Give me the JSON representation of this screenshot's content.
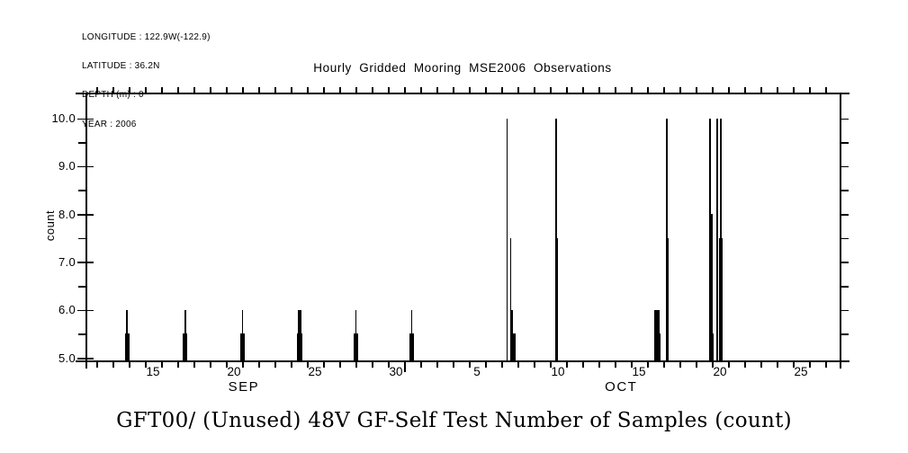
{
  "chart_data": {
    "type": "spike",
    "title": "Hourly Gridded Mooring MSE2006 Observations",
    "variable_label": "GFT00/ (Unused) 48V GF-Self Test Number of Samples (count)",
    "ylabel": "count",
    "xlabel": "",
    "grid": false,
    "legend_position": "none",
    "annotations": [
      "LONGITUDE : 122.9W(-122.9)",
      "LATITUDE : 36.2N",
      "DEPTH (m) : 0",
      "YEAR : 2006"
    ],
    "y_axis": {
      "min": 5.0,
      "max": 10.6,
      "major_tick_step": 1.0,
      "minor_tick_step": 0.5,
      "major_ticks": [
        {
          "v": 5.0,
          "label": "5.0"
        },
        {
          "v": 6.0,
          "label": "6.0"
        },
        {
          "v": 7.0,
          "label": "7.0"
        },
        {
          "v": 8.0,
          "label": "8.0"
        },
        {
          "v": 9.0,
          "label": "9.0"
        },
        {
          "v": 10.0,
          "label": "10.0"
        }
      ],
      "minor_ticks": [
        5.5,
        6.5,
        7.5,
        8.5,
        9.5
      ],
      "right_ticks": [
        5.5,
        6.0,
        6.5,
        7.0,
        7.5,
        8.0,
        8.5,
        9.0,
        9.5,
        10.0
      ]
    },
    "x_axis": {
      "units": "days since 2006-09-11 00:00",
      "start": 0.33,
      "end": 46.89,
      "day_tick_first": 1,
      "day_tick_last": 46,
      "day_tick_step": 1,
      "month_boundary_day": 20,
      "day_labels": [
        {
          "t": 4.5,
          "label": "15"
        },
        {
          "t": 9.5,
          "label": "20"
        },
        {
          "t": 14.5,
          "label": "25"
        },
        {
          "t": 19.5,
          "label": "30"
        },
        {
          "t": 24.5,
          "label": "5"
        },
        {
          "t": 29.5,
          "label": "10"
        },
        {
          "t": 34.5,
          "label": "15"
        },
        {
          "t": 39.5,
          "label": "20"
        },
        {
          "t": 44.5,
          "label": "25"
        }
      ],
      "month_labels": [
        {
          "t": 10.1,
          "label": "SEP"
        },
        {
          "t": 33.4,
          "label": "OCT"
        }
      ]
    },
    "series": [
      {
        "name": "GFT00 self-test number of samples",
        "points": [
          {
            "t": 2.82,
            "v": 5.5,
            "date": "Sep 13"
          },
          {
            "t": 2.9,
            "v": 6.0,
            "date": "Sep 13"
          },
          {
            "t": 2.99,
            "v": 5.5,
            "date": "Sep 13"
          },
          {
            "t": 6.39,
            "v": 5.5,
            "date": "Sep 17"
          },
          {
            "t": 6.48,
            "v": 6.0,
            "date": "Sep 17",
            "w": 2.2
          },
          {
            "t": 6.57,
            "v": 5.5,
            "date": "Sep 17"
          },
          {
            "t": 9.93,
            "v": 5.5,
            "date": "Sep 21"
          },
          {
            "t": 10.02,
            "v": 6.0,
            "date": "Sep 21"
          },
          {
            "t": 10.11,
            "v": 5.5,
            "date": "Sep 21"
          },
          {
            "t": 13.41,
            "v": 5.5,
            "date": "Sep 24"
          },
          {
            "t": 13.5,
            "v": 6.0,
            "date": "Sep 24",
            "w": 2.2
          },
          {
            "t": 13.59,
            "v": 6.0,
            "date": "Sep 24",
            "w": 2.2
          },
          {
            "t": 13.68,
            "v": 5.5,
            "date": "Sep 24"
          },
          {
            "t": 16.93,
            "v": 5.5,
            "date": "Sep 28"
          },
          {
            "t": 17.02,
            "v": 6.0,
            "date": "Sep 28"
          },
          {
            "t": 17.11,
            "v": 5.5,
            "date": "Sep 28"
          },
          {
            "t": 20.37,
            "v": 5.5,
            "date": "Oct 1"
          },
          {
            "t": 20.46,
            "v": 6.0,
            "date": "Oct 1"
          },
          {
            "t": 20.55,
            "v": 5.5,
            "date": "Oct 1"
          },
          {
            "t": 26.35,
            "v": 10.0,
            "date": "Oct 7"
          },
          {
            "t": 26.57,
            "v": 7.5,
            "date": "Oct 7"
          },
          {
            "t": 26.66,
            "v": 6.0,
            "date": "Oct 7"
          },
          {
            "t": 26.76,
            "v": 5.5,
            "date": "Oct 7",
            "w": 2.2
          },
          {
            "t": 26.84,
            "v": 5.5,
            "date": "Oct 7"
          },
          {
            "t": 29.39,
            "v": 10.0,
            "date": "Oct 10"
          },
          {
            "t": 29.48,
            "v": 7.5,
            "date": "Oct 10"
          },
          {
            "t": 35.52,
            "v": 6.0,
            "date": "Oct 16",
            "w": 2.4
          },
          {
            "t": 35.62,
            "v": 5.5,
            "date": "Oct 16"
          },
          {
            "t": 35.7,
            "v": 6.0,
            "date": "Oct 16",
            "w": 2.4
          },
          {
            "t": 35.8,
            "v": 5.5,
            "date": "Oct 16"
          },
          {
            "t": 36.21,
            "v": 10.0,
            "date": "Oct 17"
          },
          {
            "t": 36.31,
            "v": 7.5,
            "date": "Oct 17"
          },
          {
            "t": 38.9,
            "v": 10.0,
            "date": "Oct 19"
          },
          {
            "t": 38.99,
            "v": 8.0,
            "date": "Oct 19",
            "w": 2.2
          },
          {
            "t": 39.08,
            "v": 5.5,
            "date": "Oct 19"
          },
          {
            "t": 39.34,
            "v": 10.0,
            "date": "Oct 20"
          },
          {
            "t": 39.49,
            "v": 7.5,
            "date": "Oct 20"
          },
          {
            "t": 39.56,
            "v": 10.0,
            "date": "Oct 20"
          },
          {
            "t": 39.64,
            "v": 7.5,
            "date": "Oct 20"
          }
        ]
      }
    ],
    "colors": {
      "foreground": "#000000",
      "background": "#ffffff"
    }
  }
}
